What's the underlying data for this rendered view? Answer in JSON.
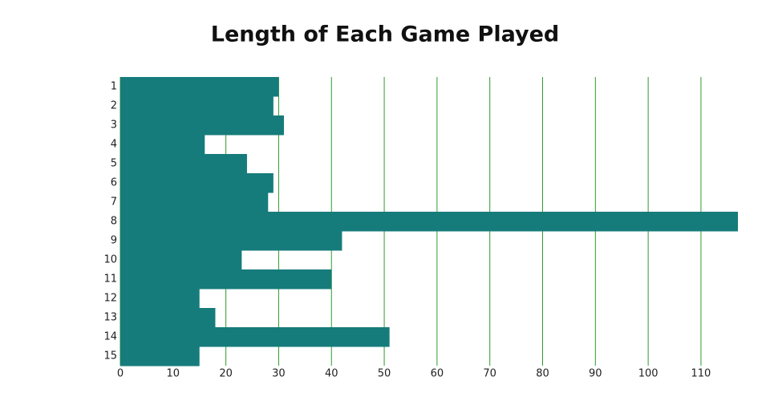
{
  "chart_data": {
    "type": "bar",
    "orientation": "horizontal",
    "title": "Length of Each Game Played",
    "categories": [
      "1",
      "2",
      "3",
      "4",
      "5",
      "6",
      "7",
      "8",
      "9",
      "10",
      "11",
      "12",
      "13",
      "14",
      "15"
    ],
    "values": [
      30,
      29,
      31,
      16,
      24,
      29,
      28,
      117,
      42,
      23,
      40,
      15,
      18,
      51,
      15
    ],
    "color": "#167b7b",
    "grid_color": "#2e9a2e",
    "xlim": [
      0,
      117
    ],
    "xticks": [
      0,
      10,
      20,
      30,
      40,
      50,
      60,
      70,
      80,
      90,
      100,
      110
    ],
    "grid": true
  }
}
